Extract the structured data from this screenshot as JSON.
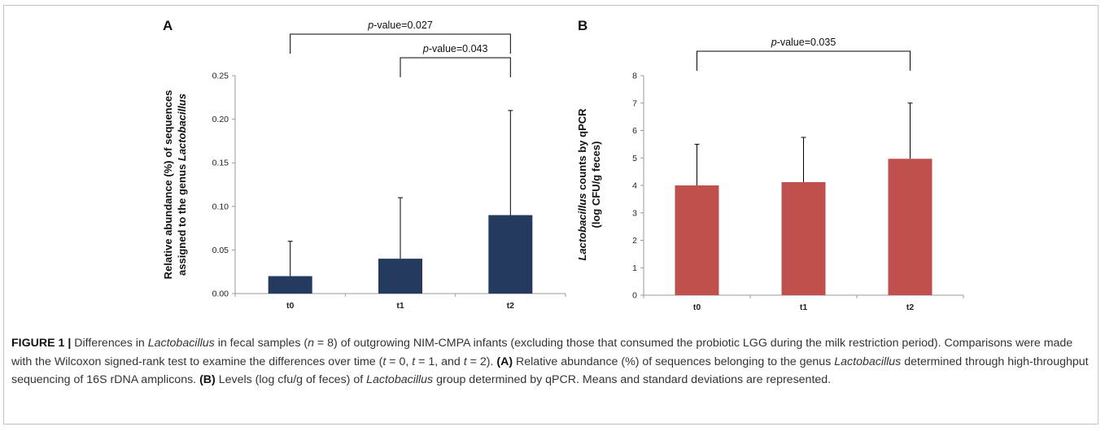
{
  "chart_data": [
    {
      "panel": "A",
      "type": "bar",
      "categories": [
        "t0",
        "t1",
        "t2"
      ],
      "values": [
        0.02,
        0.04,
        0.09
      ],
      "errors": [
        0.04,
        0.07,
        0.12
      ],
      "ylim": [
        0,
        0.25
      ],
      "yticks": [
        "0.00",
        "0.05",
        "0.10",
        "0.15",
        "0.20",
        "0.25"
      ],
      "ylabel_line1": "Relative abundance (%) of sequences",
      "ylabel_line2_prefix": "assigned to the genus ",
      "ylabel_line2_italic": "Lactobacillus",
      "bar_color": "#243a5e",
      "brackets": [
        {
          "from": "t0",
          "to": "t2",
          "p_prefix": "p",
          "p_text": "-value=0.027"
        },
        {
          "from": "t1",
          "to": "t2",
          "p_prefix": "p",
          "p_text": "-value=0.043"
        }
      ]
    },
    {
      "panel": "B",
      "type": "bar",
      "categories": [
        "t0",
        "t1",
        "t2"
      ],
      "values": [
        4.0,
        4.12,
        4.97
      ],
      "errors": [
        1.5,
        1.63,
        2.03
      ],
      "ylim": [
        0,
        8
      ],
      "yticks": [
        "0",
        "1",
        "2",
        "3",
        "4",
        "5",
        "6",
        "7",
        "8"
      ],
      "ylabel_line1_italic": "Lactobacillus",
      "ylabel_line1_suffix": " counts by qPCR",
      "ylabel_line2": "(log CFU/g feces)",
      "bar_color": "#c0504d",
      "brackets": [
        {
          "from": "t0",
          "to": "t2",
          "p_prefix": "p",
          "p_text": "-value=0.035"
        }
      ]
    }
  ],
  "caption": {
    "label": "FIGURE 1 |",
    "t1": " Differences in ",
    "i1": "Lactobacillus",
    "t2": " in fecal samples (",
    "i2": "n",
    "t3": " = 8) of outgrowing NIM-CMPA infants (excluding those that consumed the probiotic LGG during the milk restriction period). Comparisons were made with the Wilcoxon signed-rank test to examine the differences over time (",
    "i3": "t",
    "t4": " = 0, ",
    "i4": "t",
    "t5": " = 1, and ",
    "i5": "t",
    "t6": " = 2). ",
    "b1": "(A)",
    "t7": " Relative abundance (%) of sequences belonging to the genus ",
    "i6": "Lactobacillus",
    "t8": " determined through high-throughput sequencing of 16S rDNA amplicons. ",
    "b2": "(B)",
    "t9": " Levels (log cfu/g of feces) of ",
    "i7": "Lactobacillus",
    "t10": " group determined by qPCR. Means and standard deviations are represented."
  }
}
